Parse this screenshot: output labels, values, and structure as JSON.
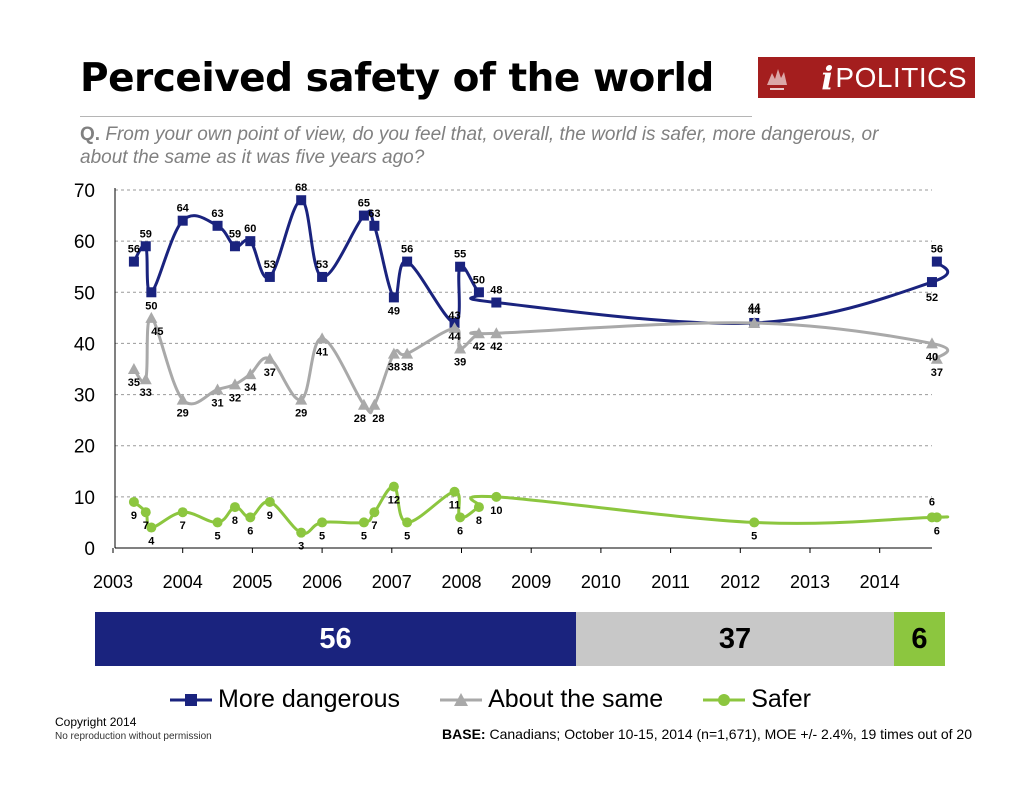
{
  "title": "Perceived safety of the world",
  "logo": {
    "i": "i",
    "text": "POLITICS",
    "color": "#a41e1e"
  },
  "question": {
    "prefix": "Q.",
    "text": "From your own point of view, do you feel that, overall, the world is safer, more dangerous, or about the same as it was five years ago?"
  },
  "colors": {
    "dangerous": "#1a237e",
    "same": "#a9a9a9",
    "safer": "#8cc63f"
  },
  "chart_data": {
    "type": "line",
    "ylim": [
      0,
      70
    ],
    "yticks": [
      0,
      10,
      20,
      30,
      40,
      50,
      60,
      70
    ],
    "xlim": [
      2003,
      2014.9
    ],
    "xticks": [
      "2003",
      "2004",
      "2005",
      "2006",
      "2007",
      "2008",
      "2009",
      "2010",
      "2011",
      "2012",
      "2013",
      "2014"
    ],
    "grid": true,
    "series": [
      {
        "name": "More dangerous",
        "marker": "square",
        "points": [
          {
            "x": 2003.3,
            "y": 56,
            "label": "56"
          },
          {
            "x": 2003.47,
            "y": 59,
            "label": "59"
          },
          {
            "x": 2003.55,
            "y": 50,
            "label": "50"
          },
          {
            "x": 2004.0,
            "y": 64,
            "label": "64"
          },
          {
            "x": 2004.5,
            "y": 63,
            "label": "63"
          },
          {
            "x": 2004.75,
            "y": 59,
            "label": "59"
          },
          {
            "x": 2004.97,
            "y": 60,
            "label": "60"
          },
          {
            "x": 2005.25,
            "y": 53,
            "label": "53"
          },
          {
            "x": 2005.7,
            "y": 68,
            "label": "68"
          },
          {
            "x": 2006.0,
            "y": 53,
            "label": "53"
          },
          {
            "x": 2006.6,
            "y": 65,
            "label": "65"
          },
          {
            "x": 2006.75,
            "y": 63,
            "label": "63"
          },
          {
            "x": 2007.03,
            "y": 49,
            "label": "49"
          },
          {
            "x": 2007.22,
            "y": 56,
            "label": "56"
          },
          {
            "x": 2007.9,
            "y": 44,
            "label": "44"
          },
          {
            "x": 2007.98,
            "y": 55,
            "label": "55"
          },
          {
            "x": 2008.25,
            "y": 50,
            "label": "50"
          },
          {
            "x": 2008.5,
            "y": 48,
            "label": "48"
          },
          {
            "x": 2012.2,
            "y": 44,
            "label": "44"
          },
          {
            "x": 2014.75,
            "y": 52,
            "label": "52"
          },
          {
            "x": 2014.82,
            "y": 56,
            "label": "56"
          }
        ]
      },
      {
        "name": "About the same",
        "marker": "triangle",
        "points": [
          {
            "x": 2003.3,
            "y": 35,
            "label": "35"
          },
          {
            "x": 2003.47,
            "y": 33,
            "label": "33"
          },
          {
            "x": 2003.55,
            "y": 45,
            "label": "45"
          },
          {
            "x": 2004.0,
            "y": 29,
            "label": "29"
          },
          {
            "x": 2004.5,
            "y": 31,
            "label": "31"
          },
          {
            "x": 2004.75,
            "y": 32,
            "label": "32"
          },
          {
            "x": 2004.97,
            "y": 34,
            "label": "34"
          },
          {
            "x": 2005.25,
            "y": 37,
            "label": "37"
          },
          {
            "x": 2005.7,
            "y": 29,
            "label": "29"
          },
          {
            "x": 2006.0,
            "y": 41,
            "label": "41"
          },
          {
            "x": 2006.6,
            "y": 28,
            "label": "28"
          },
          {
            "x": 2006.75,
            "y": 28,
            "label": "28"
          },
          {
            "x": 2007.03,
            "y": 38,
            "label": "38"
          },
          {
            "x": 2007.22,
            "y": 38,
            "label": "38"
          },
          {
            "x": 2007.9,
            "y": 43,
            "label": "43"
          },
          {
            "x": 2007.98,
            "y": 39,
            "label": "39"
          },
          {
            "x": 2008.25,
            "y": 42,
            "label": "42"
          },
          {
            "x": 2008.5,
            "y": 42,
            "label": "42"
          },
          {
            "x": 2012.2,
            "y": 44,
            "label": "44"
          },
          {
            "x": 2014.75,
            "y": 40,
            "label": "40"
          },
          {
            "x": 2014.82,
            "y": 37,
            "label": "37"
          }
        ]
      },
      {
        "name": "Safer",
        "marker": "circle",
        "points": [
          {
            "x": 2003.3,
            "y": 9,
            "label": "9"
          },
          {
            "x": 2003.47,
            "y": 7,
            "label": "7"
          },
          {
            "x": 2003.55,
            "y": 4,
            "label": "4"
          },
          {
            "x": 2004.0,
            "y": 7,
            "label": "7"
          },
          {
            "x": 2004.5,
            "y": 5,
            "label": "5"
          },
          {
            "x": 2004.75,
            "y": 8,
            "label": "8"
          },
          {
            "x": 2004.97,
            "y": 6,
            "label": "6"
          },
          {
            "x": 2005.25,
            "y": 9,
            "label": "9"
          },
          {
            "x": 2005.7,
            "y": 3,
            "label": "3"
          },
          {
            "x": 2006.0,
            "y": 5,
            "label": "5"
          },
          {
            "x": 2006.6,
            "y": 5,
            "label": "5"
          },
          {
            "x": 2006.75,
            "y": 7,
            "label": "7"
          },
          {
            "x": 2007.03,
            "y": 12,
            "label": "12"
          },
          {
            "x": 2007.22,
            "y": 5,
            "label": "5"
          },
          {
            "x": 2007.9,
            "y": 11,
            "label": "11"
          },
          {
            "x": 2007.98,
            "y": 6,
            "label": "6"
          },
          {
            "x": 2008.25,
            "y": 8,
            "label": "8"
          },
          {
            "x": 2008.5,
            "y": 10,
            "label": "10"
          },
          {
            "x": 2012.2,
            "y": 5,
            "label": "5"
          },
          {
            "x": 2014.75,
            "y": 6,
            "label": "6"
          },
          {
            "x": 2014.82,
            "y": 6,
            "label": "6"
          }
        ]
      }
    ],
    "stacked_bar": [
      {
        "name": "More dangerous",
        "value": 56,
        "label": "56"
      },
      {
        "name": "About the same",
        "value": 37,
        "label": "37"
      },
      {
        "name": "Safer",
        "value": 6,
        "label": "6"
      }
    ]
  },
  "legend": [
    {
      "label": "More dangerous"
    },
    {
      "label": "About the same"
    },
    {
      "label": "Safer"
    }
  ],
  "copyright": {
    "line1": "Copyright 2014",
    "line2": "No reproduction without permission"
  },
  "base": {
    "label": "BASE:",
    "text": "Canadians; October 10-15, 2014 (n=1,671), MOE +/- 2.4%, 19 times out of 20"
  }
}
